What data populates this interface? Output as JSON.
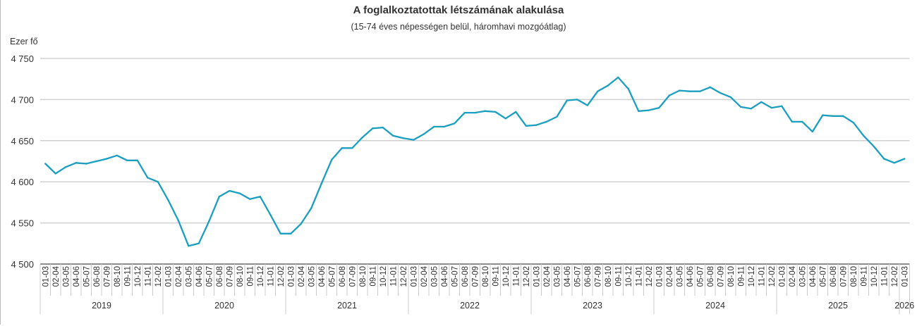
{
  "chart_data": {
    "type": "line",
    "title": "A foglalkoztatottak létszámának alakulása",
    "subtitle": "(15-74 éves népességen belül, háromhavi mozgóátlag)",
    "ylabel": "Ezer fő",
    "xlabel": "",
    "ylim": [
      4500,
      4750
    ],
    "yticks": [
      4500,
      4550,
      4600,
      4650,
      4700,
      4750
    ],
    "ytick_labels": [
      "4 500",
      "4 550",
      "4 600",
      "4 650",
      "4 700",
      "4 750"
    ],
    "grid": true,
    "color": "#1a9fc0",
    "months": [
      "01-03",
      "02-04",
      "03-05",
      "04-06",
      "05-07",
      "06-08",
      "07-09",
      "08-10",
      "09-11",
      "10-12",
      "11-01",
      "12-02"
    ],
    "years": [
      {
        "year": "2019",
        "values": [
          4622,
          4610,
          4618,
          4623,
          4622,
          4625,
          4628,
          4632,
          4626,
          4626,
          4605,
          4600
        ]
      },
      {
        "year": "2020",
        "values": [
          4578,
          4553,
          4522,
          4525,
          4552,
          4582,
          4589,
          4586,
          4579,
          4582,
          4560,
          4537
        ]
      },
      {
        "year": "2021",
        "values": [
          4537,
          4549,
          4568,
          4598,
          4627,
          4641,
          4641,
          4654,
          4665,
          4666,
          4656,
          4653
        ]
      },
      {
        "year": "2022",
        "values": [
          4651,
          4658,
          4667,
          4667,
          4671,
          4684,
          4684,
          4686,
          4685,
          4677,
          4685,
          4668
        ]
      },
      {
        "year": "2023",
        "values": [
          4669,
          4673,
          4679,
          4699,
          4700,
          4693,
          4710,
          4717,
          4727,
          4713,
          4686,
          4687
        ]
      },
      {
        "year": "2024",
        "values": [
          4690,
          4705,
          4711,
          4710,
          4710,
          4715,
          4708,
          4703,
          4691,
          4689,
          4697,
          4690
        ]
      },
      {
        "year": "2025",
        "values": [
          4692,
          4673,
          4673,
          4661,
          4681,
          4680,
          4680,
          4672,
          4656,
          4643,
          4628,
          4623
        ]
      },
      {
        "year": "2026",
        "values": [
          4628
        ]
      }
    ]
  }
}
